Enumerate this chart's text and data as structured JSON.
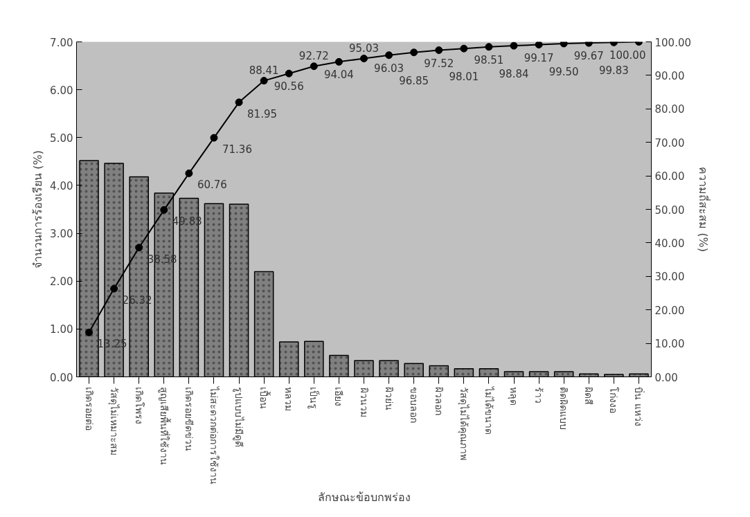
{
  "chart_data": {
    "type": "bar",
    "xlabel": "ลักษณะข้อบกพร่อง",
    "ylabel": "จำนวนการร้องเรียน (%)",
    "y2label": "ความถี่สะสม (%)",
    "categories": [
      "เกิดรอยต่อ",
      "วัสดุไม่เหมาะสม",
      "เกิดโพรง",
      "สูญเสียพื้นที่ใช้งาน",
      "เกิดรอยขีดข่วน",
      "ไม่สะดวกต่อการใช้งาน",
      "รูปแบบไม่มีดูดี",
      "เปื้อน",
      "หลวม",
      "เป็นรู",
      "เอียง",
      "ผิวนวม",
      "ผิวย่น",
      "ขอบลอก",
      "ผิวลอก",
      "วัสดุไม่ได้คุณภาพ",
      "ไม่ได้ขนาด",
      "หลุด",
      "ร้าว",
      "ติดผิดแบบ",
      "ผิดสี",
      "โก่งงอ",
      "บิ่น แหว่ง"
    ],
    "series": [
      {
        "color": "#808080",
        "values": [
          4.52,
          4.46,
          4.18,
          3.84,
          3.73,
          3.62,
          3.61,
          2.2,
          0.73,
          0.74,
          0.45,
          0.34,
          0.34,
          0.28,
          0.23,
          0.17,
          0.17,
          0.11,
          0.11,
          0.11,
          0.06,
          0.05,
          0.06
        ]
      },
      {
        "type": "line",
        "axis": "y2",
        "color": "#000000",
        "marker": "circle",
        "values": [
          13.25,
          26.32,
          38.58,
          49.83,
          60.76,
          71.36,
          81.95,
          88.41,
          90.56,
          92.72,
          94.04,
          95.03,
          96.03,
          96.85,
          97.52,
          98.01,
          98.51,
          98.84,
          99.17,
          99.5,
          99.67,
          99.83,
          100.0
        ],
        "value_labels": [
          "13.25",
          "26.32",
          "38.58",
          "49.83",
          "60.76",
          "71.36",
          "81.95",
          "88.41",
          "90.56",
          "92.72",
          "94.04",
          "95.03",
          "96.03",
          "96.85",
          "97.52",
          "98.01",
          "98.51",
          "98.84",
          "99.17",
          "99.50",
          "99.67",
          "99.83",
          "100.00"
        ]
      }
    ],
    "ylim": [
      0,
      7
    ],
    "yticks": [
      {
        "value": 0,
        "label": "0.00"
      },
      {
        "value": 1,
        "label": "1.00"
      },
      {
        "value": 2,
        "label": "2.00"
      },
      {
        "value": 3,
        "label": "3.00"
      },
      {
        "value": 4,
        "label": "4.00"
      },
      {
        "value": 5,
        "label": "5.00"
      },
      {
        "value": 6,
        "label": "6.00"
      },
      {
        "value": 7,
        "label": "7.00"
      }
    ],
    "y2lim": [
      0,
      100
    ],
    "y2ticks": [
      {
        "value": 0,
        "label": "0.00"
      },
      {
        "value": 10,
        "label": "10.00"
      },
      {
        "value": 20,
        "label": "20.00"
      },
      {
        "value": 30,
        "label": "30.00"
      },
      {
        "value": 40,
        "label": "40.00"
      },
      {
        "value": 50,
        "label": "50.00"
      },
      {
        "value": 60,
        "label": "60.00"
      },
      {
        "value": 70,
        "label": "70.00"
      },
      {
        "value": 80,
        "label": "80.00"
      },
      {
        "value": 90,
        "label": "90.00"
      },
      {
        "value": 100,
        "label": "100.00"
      }
    ],
    "grid": false
  }
}
